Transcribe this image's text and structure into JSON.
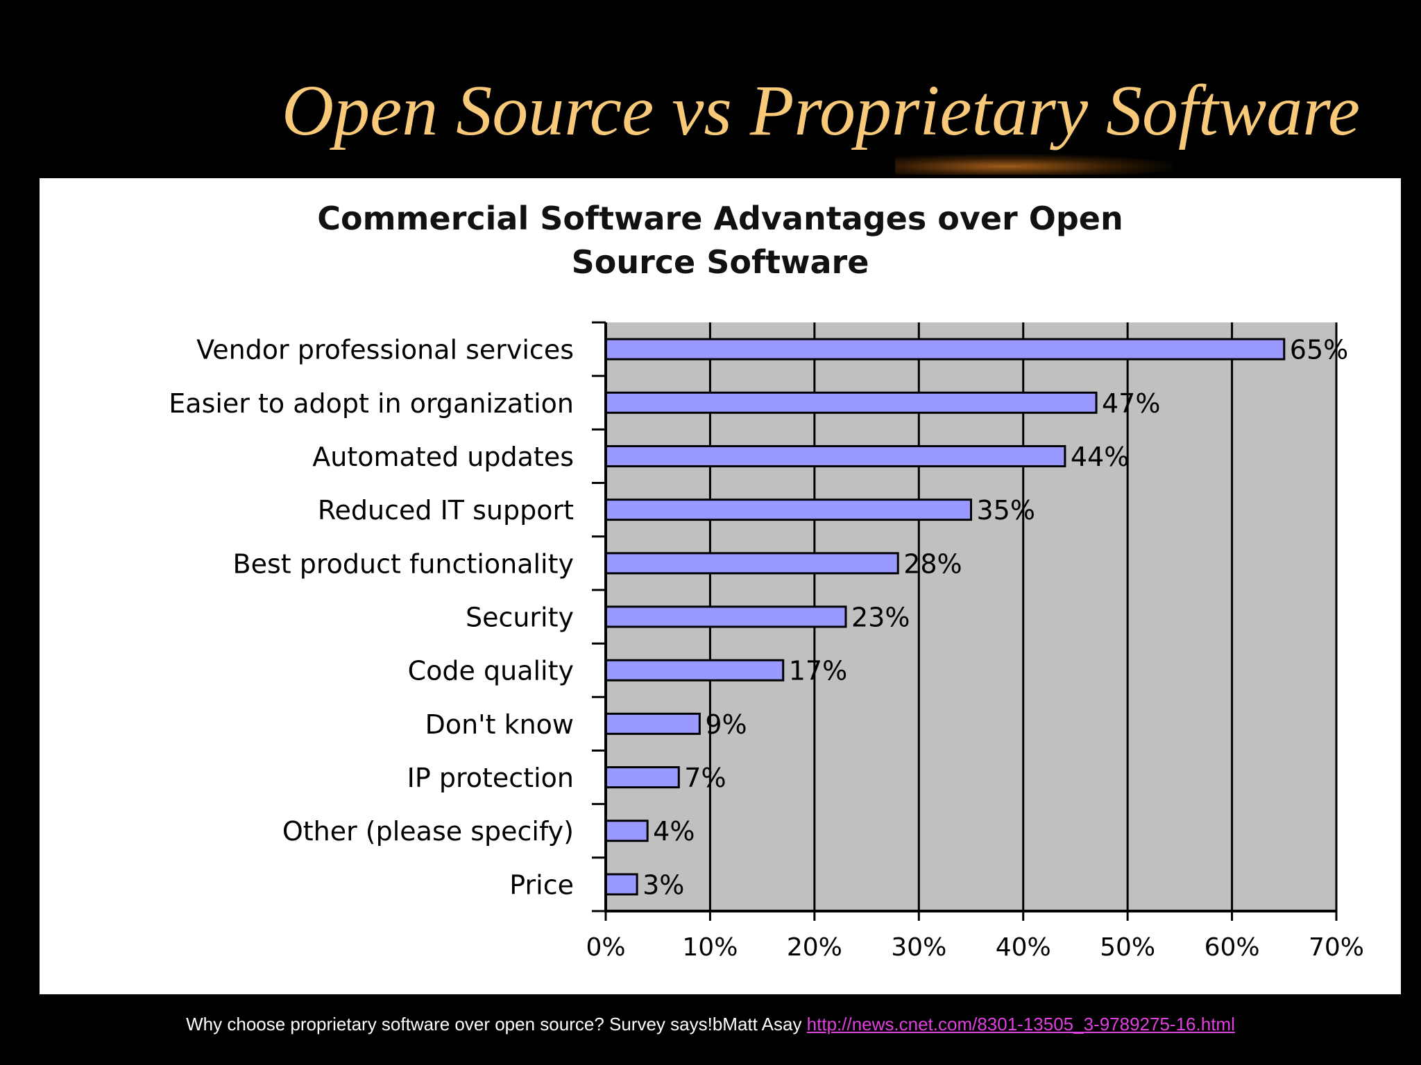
{
  "slide": {
    "title": "Open Source vs Proprietary Software"
  },
  "footer": {
    "text": "Why choose proprietary software over open source? Survey says!bMatt Asay ",
    "link": "http://news.cnet.com/8301-13505_3-9789275-16.html"
  },
  "colors": {
    "title": "#f7c978",
    "bar_fill": "#9999ff",
    "plot_bg": "#c0c0c0",
    "link": "#e040e0"
  },
  "chart_data": {
    "type": "bar",
    "orientation": "horizontal",
    "title_lines": [
      "Commercial Software Advantages over Open",
      "Source Software"
    ],
    "categories": [
      "Vendor professional services",
      "Easier to adopt in organization",
      "Automated updates",
      "Reduced IT support",
      "Best product functionality",
      "Security",
      "Code quality",
      "Don't know",
      "IP protection",
      "Other (please specify)",
      "Price"
    ],
    "values": [
      65,
      47,
      44,
      35,
      28,
      23,
      17,
      9,
      7,
      4,
      3
    ],
    "value_labels": [
      "65%",
      "47%",
      "44%",
      "35%",
      "28%",
      "23%",
      "17%",
      "9%",
      "7%",
      "4%",
      "3%"
    ],
    "xlim": [
      0,
      70
    ],
    "xticks": [
      0,
      10,
      20,
      30,
      40,
      50,
      60,
      70
    ],
    "xtick_labels": [
      "0%",
      "10%",
      "20%",
      "30%",
      "40%",
      "50%",
      "60%",
      "70%"
    ],
    "grid": true,
    "legend": "none"
  }
}
